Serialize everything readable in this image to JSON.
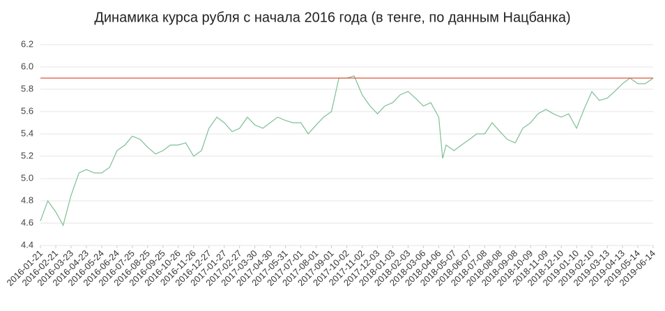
{
  "chart_data": {
    "type": "line",
    "title": "Динамика курса рубля с начала 2016 года (в тенге, по данным Нацбанка)",
    "x": [
      "2016-01-21",
      "2016-02-05",
      "2016-02-21",
      "2016-03-07",
      "2016-03-23",
      "2016-04-08",
      "2016-04-23",
      "2016-05-09",
      "2016-05-24",
      "2016-06-09",
      "2016-06-24",
      "2016-07-10",
      "2016-07-25",
      "2016-08-10",
      "2016-08-25",
      "2016-09-10",
      "2016-09-25",
      "2016-10-10",
      "2016-10-26",
      "2016-11-10",
      "2016-11-26",
      "2016-12-12",
      "2016-12-27",
      "2017-01-12",
      "2017-01-27",
      "2017-02-12",
      "2017-02-27",
      "2017-03-15",
      "2017-03-30",
      "2017-04-15",
      "2017-04-30",
      "2017-05-15",
      "2017-05-31",
      "2017-06-15",
      "2017-07-01",
      "2017-07-16",
      "2017-08-01",
      "2017-08-16",
      "2017-09-01",
      "2017-09-16",
      "2017-10-02",
      "2017-10-17",
      "2017-11-02",
      "2017-11-18",
      "2017-12-03",
      "2017-12-18",
      "2018-01-03",
      "2018-01-18",
      "2018-02-03",
      "2018-02-18",
      "2018-03-06",
      "2018-03-21",
      "2018-04-06",
      "2018-04-14",
      "2018-04-21",
      "2018-05-07",
      "2018-05-22",
      "2018-06-07",
      "2018-06-22",
      "2018-07-08",
      "2018-07-23",
      "2018-08-08",
      "2018-08-23",
      "2018-09-08",
      "2018-09-23",
      "2018-10-09",
      "2018-10-24",
      "2018-11-09",
      "2018-11-24",
      "2018-12-10",
      "2018-12-25",
      "2019-01-10",
      "2019-01-25",
      "2019-02-10",
      "2019-02-25",
      "2019-03-13",
      "2019-03-28",
      "2019-04-13",
      "2019-04-28",
      "2019-05-14",
      "2019-05-29",
      "2019-06-14"
    ],
    "series": [
      {
        "color": "#7dbf95",
        "values": [
          4.62,
          4.8,
          4.7,
          4.58,
          4.85,
          5.05,
          5.08,
          5.05,
          5.05,
          5.1,
          5.25,
          5.3,
          5.38,
          5.35,
          5.28,
          5.22,
          5.25,
          5.3,
          5.3,
          5.32,
          5.2,
          5.25,
          5.45,
          5.55,
          5.5,
          5.42,
          5.45,
          5.55,
          5.48,
          5.45,
          5.5,
          5.55,
          5.52,
          5.5,
          5.5,
          5.4,
          5.48,
          5.55,
          5.6,
          5.9,
          5.9,
          5.92,
          5.75,
          5.65,
          5.58,
          5.65,
          5.68,
          5.75,
          5.78,
          5.72,
          5.65,
          5.68,
          5.55,
          5.18,
          5.3,
          5.25,
          5.3,
          5.35,
          5.4,
          5.4,
          5.5,
          5.42,
          5.35,
          5.32,
          5.45,
          5.5,
          5.58,
          5.62,
          5.58,
          5.55,
          5.58,
          5.45,
          5.62,
          5.78,
          5.7,
          5.72,
          5.78,
          5.85,
          5.9,
          5.85,
          5.85,
          5.9
        ]
      }
    ],
    "reference_line": {
      "value": 5.9,
      "color": "#e0533f"
    },
    "xlim": [
      "2016-01-21",
      "2019-06-14"
    ],
    "xticks": [
      "2016-01-21",
      "2016-02-21",
      "2016-03-23",
      "2016-04-23",
      "2016-05-24",
      "2016-06-24",
      "2016-07-25",
      "2016-08-25",
      "2016-09-25",
      "2016-10-26",
      "2016-11-26",
      "2016-12-27",
      "2017-01-27",
      "2017-02-27",
      "2017-03-30",
      "2017-04-30",
      "2017-05-31",
      "2017-07-01",
      "2017-08-01",
      "2017-09-01",
      "2017-10-02",
      "2017-11-02",
      "2017-12-03",
      "2018-01-03",
      "2018-02-03",
      "2018-03-06",
      "2018-04-06",
      "2018-05-07",
      "2018-06-07",
      "2018-07-08",
      "2018-08-08",
      "2018-09-08",
      "2018-10-09",
      "2018-11-09",
      "2018-12-10",
      "2019-01-10",
      "2019-02-10",
      "2019-03-13",
      "2019-04-13",
      "2019-05-14",
      "2019-06-14"
    ],
    "ylim": [
      4.4,
      6.2
    ],
    "yticks": [
      4.4,
      4.6,
      4.8,
      {
        "value": 5,
        "label": "5.0"
      },
      5.2,
      5.4,
      5.6,
      5.8,
      {
        "value": 6,
        "label": "6.0"
      },
      6.2
    ],
    "grid": true
  }
}
